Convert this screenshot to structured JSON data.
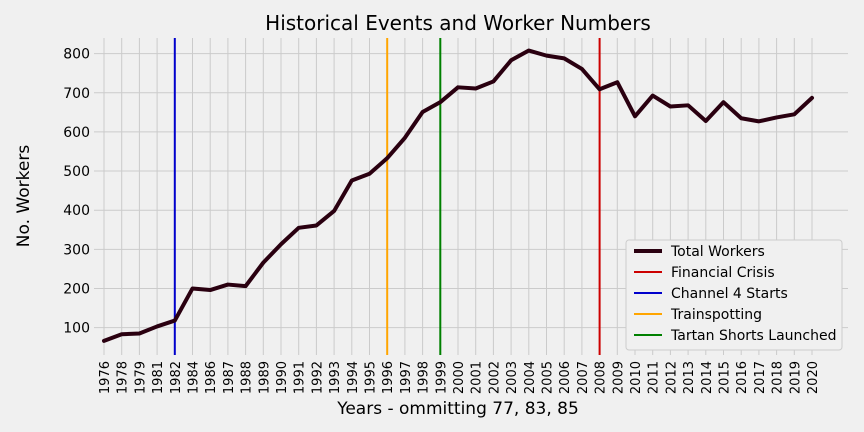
{
  "chart_data": {
    "type": "line",
    "title": "Historical Events and Worker Numbers",
    "xlabel": "Years - ommitting 77, 83, 85",
    "ylabel": "No. Workers",
    "grid": true,
    "legend_position": "lower-right",
    "ylim": [
      30,
      840
    ],
    "yticks": [
      100,
      200,
      300,
      400,
      500,
      600,
      700,
      800
    ],
    "categories": [
      "1976",
      "1978",
      "1979",
      "1981",
      "1982",
      "1984",
      "1986",
      "1987",
      "1988",
      "1989",
      "1990",
      "1991",
      "1992",
      "1993",
      "1994",
      "1995",
      "1996",
      "1997",
      "1998",
      "1999",
      "2000",
      "2001",
      "2002",
      "2003",
      "2004",
      "2005",
      "2006",
      "2007",
      "2008",
      "2009",
      "2010",
      "2011",
      "2012",
      "2013",
      "2014",
      "2015",
      "2016",
      "2017",
      "2018",
      "2019",
      "2020"
    ],
    "series": [
      {
        "name": "Total Workers",
        "color": "#2a0010",
        "values": [
          66,
          83,
          85,
          103,
          118,
          200,
          196,
          210,
          206,
          266,
          313,
          355,
          361,
          398,
          476,
          493,
          533,
          585,
          651,
          676,
          714,
          711,
          729,
          783,
          808,
          795,
          788,
          761,
          709,
          727,
          640,
          693,
          665,
          668,
          628,
          676,
          635,
          627,
          637,
          645,
          687
        ]
      }
    ],
    "events": [
      {
        "name": "Financial Crisis",
        "category": "2008",
        "color": "#cc0000"
      },
      {
        "name": "Channel 4 Starts",
        "category": "1982",
        "color": "#0000cc"
      },
      {
        "name": "Trainspotting",
        "category": "1996",
        "color": "#ffa500"
      },
      {
        "name": "Tartan Shorts Launched",
        "category": "1999",
        "color": "#008000"
      }
    ]
  }
}
